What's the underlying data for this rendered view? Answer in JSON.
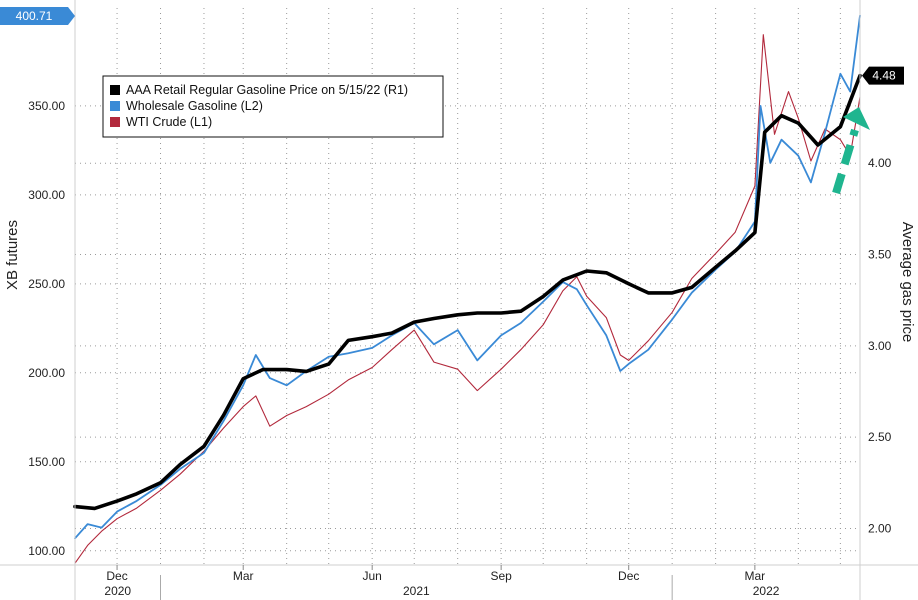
{
  "chart_data": {
    "type": "line",
    "title": "",
    "x_range": [
      "2020-11-01",
      "2022-05-15"
    ],
    "x_ticks": [
      {
        "label": "Dec",
        "date": "2020-12-01"
      },
      {
        "label": "Mar",
        "date": "2021-03-01"
      },
      {
        "label": "Jun",
        "date": "2021-06-01"
      },
      {
        "label": "Sep",
        "date": "2021-09-01"
      },
      {
        "label": "Dec",
        "date": "2021-12-01"
      },
      {
        "label": "Mar",
        "date": "2022-03-01"
      }
    ],
    "year_labels": [
      {
        "label": "2020",
        "from": "2020-11-01",
        "to": "2021-01-01"
      },
      {
        "label": "2021",
        "from": "2021-01-01",
        "to": "2022-01-01"
      },
      {
        "label": "2022",
        "from": "2022-01-01",
        "to": "2022-05-15"
      }
    ],
    "left_axis": {
      "label": "XB futures",
      "range": [
        92,
        405
      ],
      "ticks": [
        100,
        150,
        200,
        250,
        300,
        350
      ],
      "tick_labels": [
        "100.00",
        "150.00",
        "200.00",
        "250.00",
        "300.00",
        "350.00"
      ]
    },
    "right_axis": {
      "label": "Average gas price",
      "range": [
        1.8,
        4.85
      ],
      "ticks": [
        2.0,
        2.5,
        3.0,
        3.5,
        4.0
      ],
      "tick_labels": [
        "2.00",
        "2.50",
        "3.00",
        "3.50",
        "4.00"
      ]
    },
    "grid": true,
    "legend_position": "top-left",
    "series": [
      {
        "name": "AAA Retail Regular Gasoline Price on 5/15/22 (R1)",
        "axis": "right",
        "color": "#000000",
        "points": [
          [
            "2020-11-01",
            2.12
          ],
          [
            "2020-11-15",
            2.11
          ],
          [
            "2020-12-01",
            2.15
          ],
          [
            "2020-12-15",
            2.19
          ],
          [
            "2021-01-01",
            2.25
          ],
          [
            "2021-01-15",
            2.35
          ],
          [
            "2021-02-01",
            2.45
          ],
          [
            "2021-02-15",
            2.62
          ],
          [
            "2021-03-01",
            2.82
          ],
          [
            "2021-03-15",
            2.87
          ],
          [
            "2021-04-01",
            2.87
          ],
          [
            "2021-04-15",
            2.86
          ],
          [
            "2021-05-01",
            2.9
          ],
          [
            "2021-05-15",
            3.03
          ],
          [
            "2021-06-01",
            3.05
          ],
          [
            "2021-06-15",
            3.07
          ],
          [
            "2021-07-01",
            3.13
          ],
          [
            "2021-07-15",
            3.15
          ],
          [
            "2021-08-01",
            3.17
          ],
          [
            "2021-08-15",
            3.18
          ],
          [
            "2021-09-01",
            3.18
          ],
          [
            "2021-09-15",
            3.19
          ],
          [
            "2021-10-01",
            3.27
          ],
          [
            "2021-10-15",
            3.36
          ],
          [
            "2021-11-01",
            3.41
          ],
          [
            "2021-11-15",
            3.4
          ],
          [
            "2021-12-01",
            3.34
          ],
          [
            "2021-12-15",
            3.29
          ],
          [
            "2022-01-01",
            3.29
          ],
          [
            "2022-01-15",
            3.32
          ],
          [
            "2022-02-01",
            3.43
          ],
          [
            "2022-02-15",
            3.52
          ],
          [
            "2022-03-01",
            3.62
          ],
          [
            "2022-03-08",
            4.17
          ],
          [
            "2022-03-20",
            4.26
          ],
          [
            "2022-04-01",
            4.22
          ],
          [
            "2022-04-15",
            4.1
          ],
          [
            "2022-05-01",
            4.2
          ],
          [
            "2022-05-15",
            4.48
          ]
        ]
      },
      {
        "name": "Wholesale Gasoline (L2)",
        "axis": "left",
        "color": "#3a8ad6",
        "points": [
          [
            "2020-11-01",
            107
          ],
          [
            "2020-11-10",
            115
          ],
          [
            "2020-11-20",
            113
          ],
          [
            "2020-12-01",
            122
          ],
          [
            "2020-12-15",
            128
          ],
          [
            "2021-01-01",
            137
          ],
          [
            "2021-01-15",
            146
          ],
          [
            "2021-02-01",
            155
          ],
          [
            "2021-02-15",
            173
          ],
          [
            "2021-03-01",
            193
          ],
          [
            "2021-03-10",
            210
          ],
          [
            "2021-03-20",
            197
          ],
          [
            "2021-04-01",
            193
          ],
          [
            "2021-04-15",
            201
          ],
          [
            "2021-05-01",
            209
          ],
          [
            "2021-05-15",
            211
          ],
          [
            "2021-06-01",
            214
          ],
          [
            "2021-06-15",
            221
          ],
          [
            "2021-07-01",
            228
          ],
          [
            "2021-07-15",
            216
          ],
          [
            "2021-08-01",
            224
          ],
          [
            "2021-08-15",
            207
          ],
          [
            "2021-09-01",
            221
          ],
          [
            "2021-09-15",
            228
          ],
          [
            "2021-10-01",
            240
          ],
          [
            "2021-10-15",
            251
          ],
          [
            "2021-10-25",
            247
          ],
          [
            "2021-11-01",
            238
          ],
          [
            "2021-11-15",
            221
          ],
          [
            "2021-11-25",
            201
          ],
          [
            "2021-12-01",
            205
          ],
          [
            "2021-12-15",
            213
          ],
          [
            "2022-01-01",
            230
          ],
          [
            "2022-01-15",
            245
          ],
          [
            "2022-02-01",
            258
          ],
          [
            "2022-02-15",
            268
          ],
          [
            "2022-03-01",
            285
          ],
          [
            "2022-03-05",
            350
          ],
          [
            "2022-03-12",
            318
          ],
          [
            "2022-03-20",
            331
          ],
          [
            "2022-04-01",
            322
          ],
          [
            "2022-04-10",
            307
          ],
          [
            "2022-04-20",
            335
          ],
          [
            "2022-05-01",
            368
          ],
          [
            "2022-05-08",
            358
          ],
          [
            "2022-05-15",
            400.71
          ]
        ]
      },
      {
        "name": "WTI Crude (L1)",
        "axis": "left",
        "color": "#b2293c",
        "points": [
          [
            "2020-11-01",
            93
          ],
          [
            "2020-11-10",
            103
          ],
          [
            "2020-11-20",
            111
          ],
          [
            "2020-12-01",
            118
          ],
          [
            "2020-12-15",
            124
          ],
          [
            "2021-01-01",
            134
          ],
          [
            "2021-01-15",
            143
          ],
          [
            "2021-02-01",
            156
          ],
          [
            "2021-02-15",
            169
          ],
          [
            "2021-03-01",
            181
          ],
          [
            "2021-03-10",
            187
          ],
          [
            "2021-03-20",
            170
          ],
          [
            "2021-04-01",
            176
          ],
          [
            "2021-04-15",
            181
          ],
          [
            "2021-05-01",
            188
          ],
          [
            "2021-05-15",
            196
          ],
          [
            "2021-06-01",
            203
          ],
          [
            "2021-06-15",
            213
          ],
          [
            "2021-07-01",
            224
          ],
          [
            "2021-07-15",
            206
          ],
          [
            "2021-08-01",
            202
          ],
          [
            "2021-08-15",
            190
          ],
          [
            "2021-09-01",
            202
          ],
          [
            "2021-09-15",
            213
          ],
          [
            "2021-10-01",
            227
          ],
          [
            "2021-10-15",
            246
          ],
          [
            "2021-10-25",
            254
          ],
          [
            "2021-11-01",
            243
          ],
          [
            "2021-11-15",
            231
          ],
          [
            "2021-11-25",
            210
          ],
          [
            "2021-12-01",
            207
          ],
          [
            "2021-12-15",
            218
          ],
          [
            "2022-01-01",
            234
          ],
          [
            "2022-01-15",
            253
          ],
          [
            "2022-02-01",
            267
          ],
          [
            "2022-02-15",
            279
          ],
          [
            "2022-03-01",
            305
          ],
          [
            "2022-03-07",
            390
          ],
          [
            "2022-03-15",
            334
          ],
          [
            "2022-03-25",
            358
          ],
          [
            "2022-04-01",
            343
          ],
          [
            "2022-04-10",
            319
          ],
          [
            "2022-04-20",
            337
          ],
          [
            "2022-05-01",
            331
          ],
          [
            "2022-05-08",
            322
          ],
          [
            "2022-05-15",
            355
          ]
        ]
      }
    ],
    "last_value_tags": [
      {
        "series": "Wholesale Gasoline (L2)",
        "axis": "left",
        "label": "400.71",
        "value": 400.71
      },
      {
        "series": "AAA Retail Regular Gasoline Price on 5/15/22 (R1)",
        "axis": "right",
        "label": "4.48",
        "value": 4.48
      }
    ],
    "annotation": {
      "kind": "dashed-arrow",
      "color": "#1fb58f",
      "direction": "up"
    }
  }
}
